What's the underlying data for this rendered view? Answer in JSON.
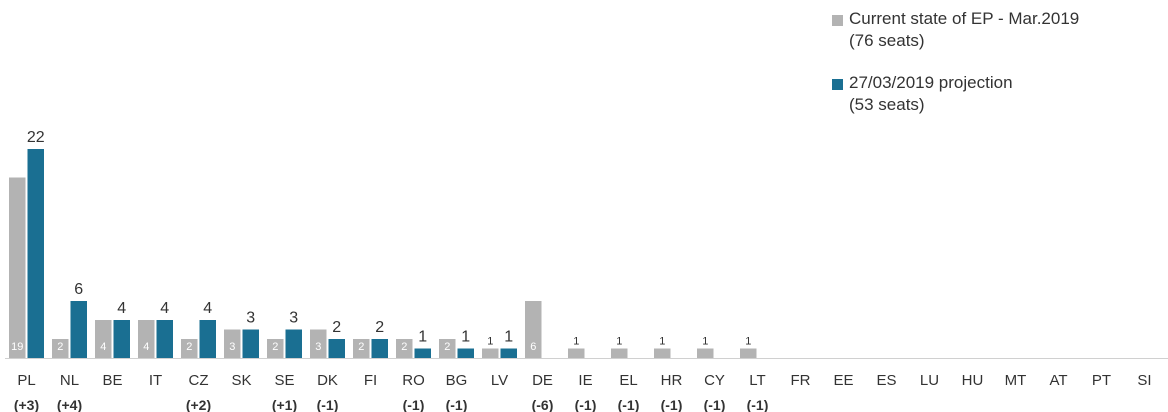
{
  "chart_data": {
    "type": "bar",
    "categories": [
      "PL",
      "NL",
      "BE",
      "IT",
      "CZ",
      "SK",
      "SE",
      "DK",
      "FI",
      "RO",
      "BG",
      "LV",
      "DE",
      "IE",
      "EL",
      "HR",
      "CY",
      "LT",
      "FR",
      "EE",
      "ES",
      "LU",
      "HU",
      "MT",
      "AT",
      "PT",
      "SI"
    ],
    "changes": [
      "(+3)",
      "(+4)",
      "",
      "",
      "(+2)",
      "",
      "(+1)",
      "(-1)",
      "",
      "(-1)",
      "(-1)",
      "",
      "(-6)",
      "(-1)",
      "(-1)",
      "(-1)",
      "(-1)",
      "(-1)",
      "",
      "",
      "",
      "",
      "",
      "",
      "",
      "",
      ""
    ],
    "series": [
      {
        "name": "Current state of EP - Mar.2019",
        "note": "(76 seats)",
        "color": "#b3b3b3",
        "values": [
          19,
          2,
          4,
          4,
          2,
          3,
          2,
          3,
          2,
          2,
          2,
          1,
          6,
          1,
          1,
          1,
          1,
          1,
          0,
          0,
          0,
          0,
          0,
          0,
          0,
          0,
          0
        ]
      },
      {
        "name": "27/03/2019 projection",
        "note": "(53 seats)",
        "color": "#1a6f92",
        "values": [
          22,
          6,
          4,
          4,
          4,
          3,
          3,
          2,
          2,
          1,
          1,
          1,
          0,
          0,
          0,
          0,
          0,
          0,
          0,
          0,
          0,
          0,
          0,
          0,
          0,
          0,
          0
        ]
      }
    ],
    "ylim": [
      0,
      22
    ],
    "grid": false,
    "legend": "top-right",
    "title": "",
    "xlabel": "",
    "ylabel": ""
  }
}
